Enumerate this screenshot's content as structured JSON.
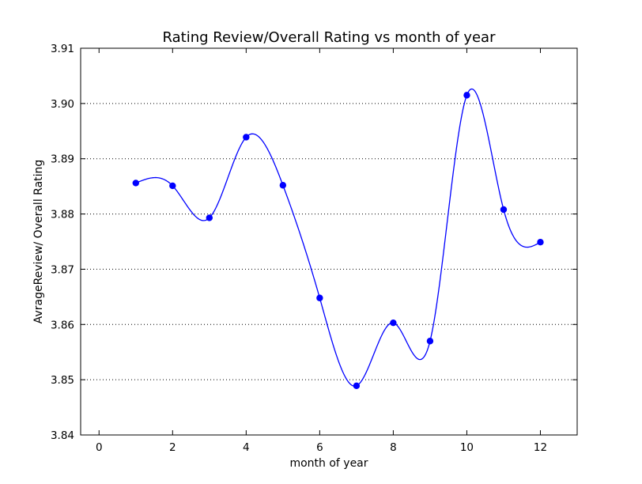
{
  "chart_data": {
    "type": "line",
    "title": "Rating Review/Overall Rating vs month of year",
    "xlabel": "month of year",
    "ylabel": "AvrageReview/ Overall Rating",
    "xlim": [
      -0.5,
      13
    ],
    "ylim": [
      3.84,
      3.91
    ],
    "xticks": [
      0,
      2,
      4,
      6,
      8,
      10,
      12
    ],
    "xtick_labels": [
      "0",
      "2",
      "4",
      "6",
      "8",
      "10",
      "12"
    ],
    "yticks": [
      3.84,
      3.85,
      3.86,
      3.87,
      3.88,
      3.89,
      3.9,
      3.91
    ],
    "ytick_labels": [
      "3.84",
      "3.85",
      "3.86",
      "3.87",
      "3.88",
      "3.89",
      "3.90",
      "3.91"
    ],
    "grid": "horizontal dotted",
    "line_color": "#0000ff",
    "x": [
      1,
      2,
      3,
      4,
      5,
      6,
      7,
      8,
      9,
      10,
      11,
      12
    ],
    "series": [
      {
        "values": [
          3.8856,
          3.8851,
          3.8793,
          3.8939,
          3.8852,
          3.8648,
          3.8489,
          3.8603,
          3.857,
          3.9015,
          3.8808,
          3.8749
        ]
      }
    ]
  }
}
